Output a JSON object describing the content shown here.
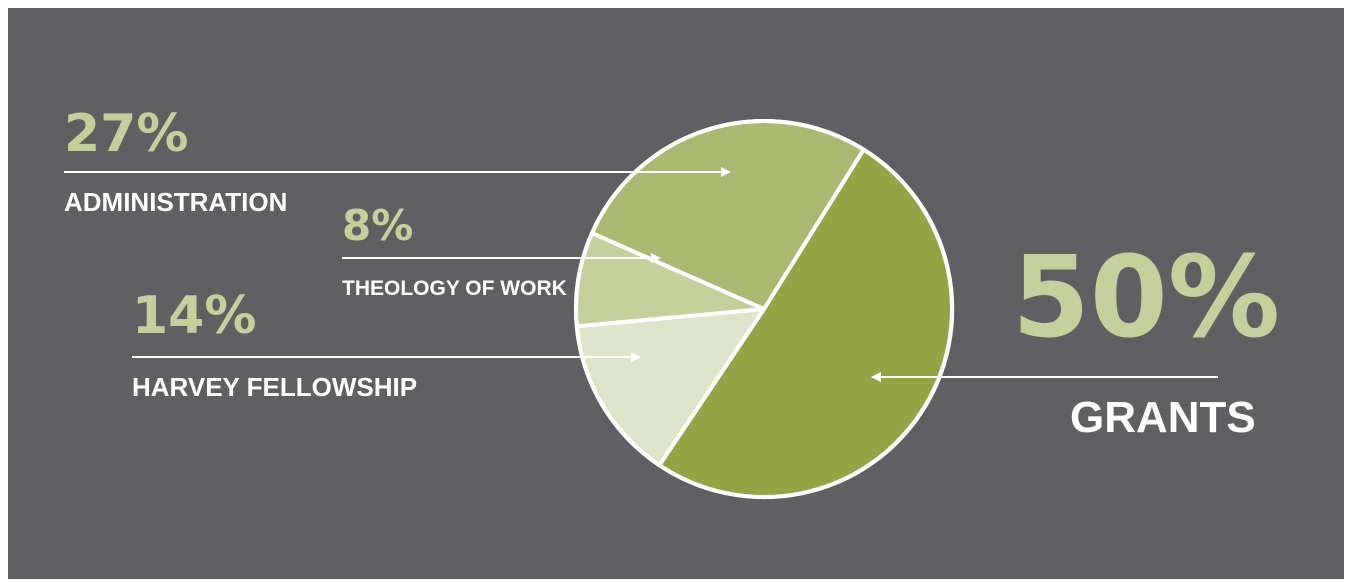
{
  "chart_data": {
    "type": "pie",
    "title": "",
    "slices": [
      {
        "label": "GRANTS",
        "value": 50,
        "value_label": "50%",
        "color": "#94a445"
      },
      {
        "label": "HARVEY FELLOWSHIP",
        "value": 14,
        "value_label": "14%",
        "color": "#dfe5ca"
      },
      {
        "label": "THEOLOGY OF WORK",
        "value": 8,
        "value_label": "8%",
        "color": "#c4cf9c"
      },
      {
        "label": "ADMINISTRATION",
        "value": 27,
        "value_label": "27%",
        "color": "#aab872"
      }
    ],
    "legend": "none",
    "label_style": "callout-arrows",
    "background": "#606062",
    "percent_color": "#c4cf9c",
    "label_color": "#ffffff"
  }
}
